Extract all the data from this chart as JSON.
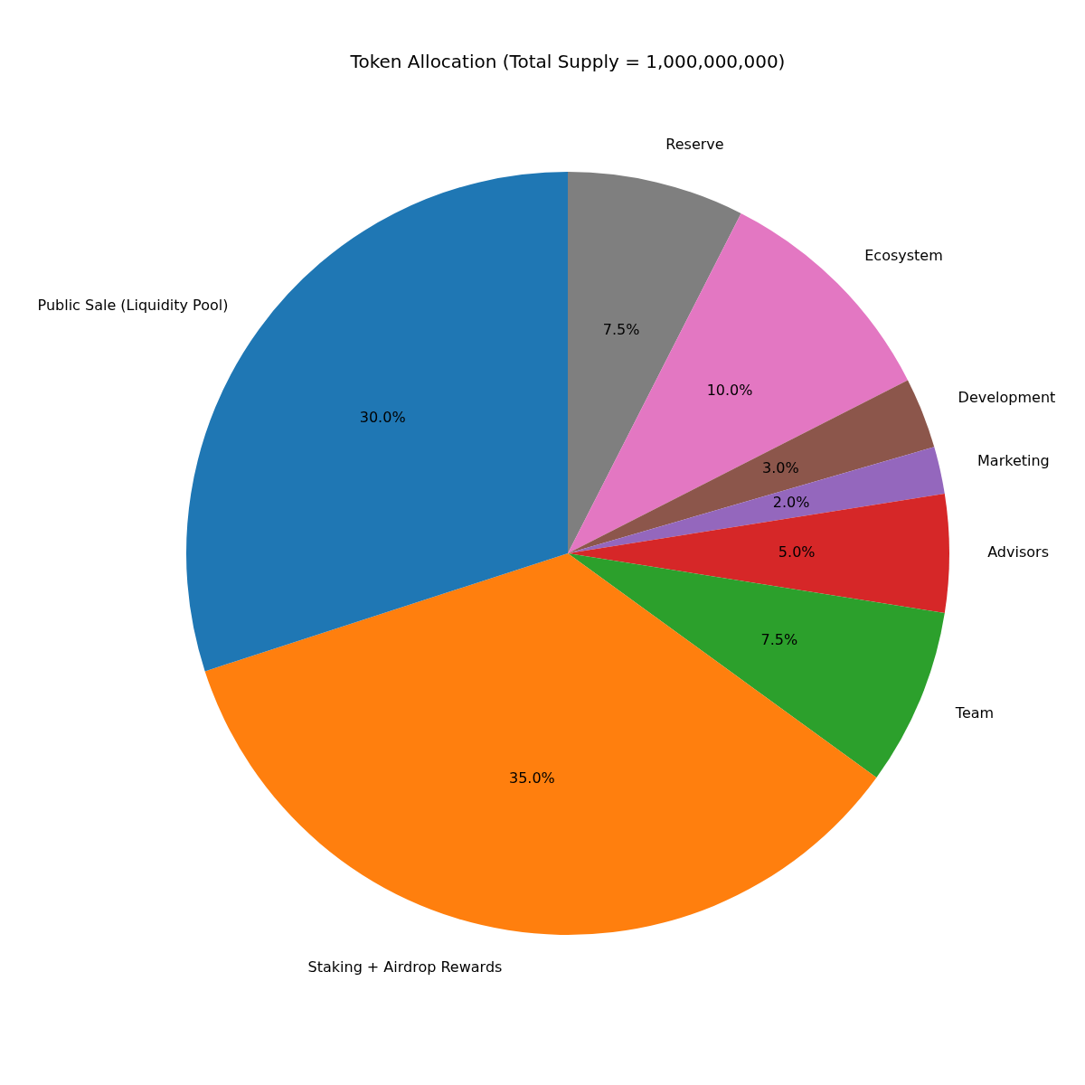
{
  "chart_data": {
    "type": "pie",
    "title": "Token Allocation (Total Supply = 1,000,000,000)",
    "categories": [
      "Reserve",
      "Ecosystem",
      "Development",
      "Marketing",
      "Advisors",
      "Team",
      "Staking + Airdrop Rewards",
      "Public Sale (Liquidity Pool)"
    ],
    "values": [
      7.5,
      10,
      3,
      2,
      5,
      7.5,
      35,
      30
    ],
    "value_labels": [
      "7.5%",
      "10.0%",
      "3.0%",
      "2.0%",
      "5.0%",
      "7.5%",
      "35.0%",
      "30.0%"
    ],
    "colors": [
      "#7f7f7f",
      "#e377c2",
      "#8c564b",
      "#9467bd",
      "#d62728",
      "#2ca02c",
      "#ff7f0e",
      "#1f77b4"
    ],
    "legend": false
  }
}
